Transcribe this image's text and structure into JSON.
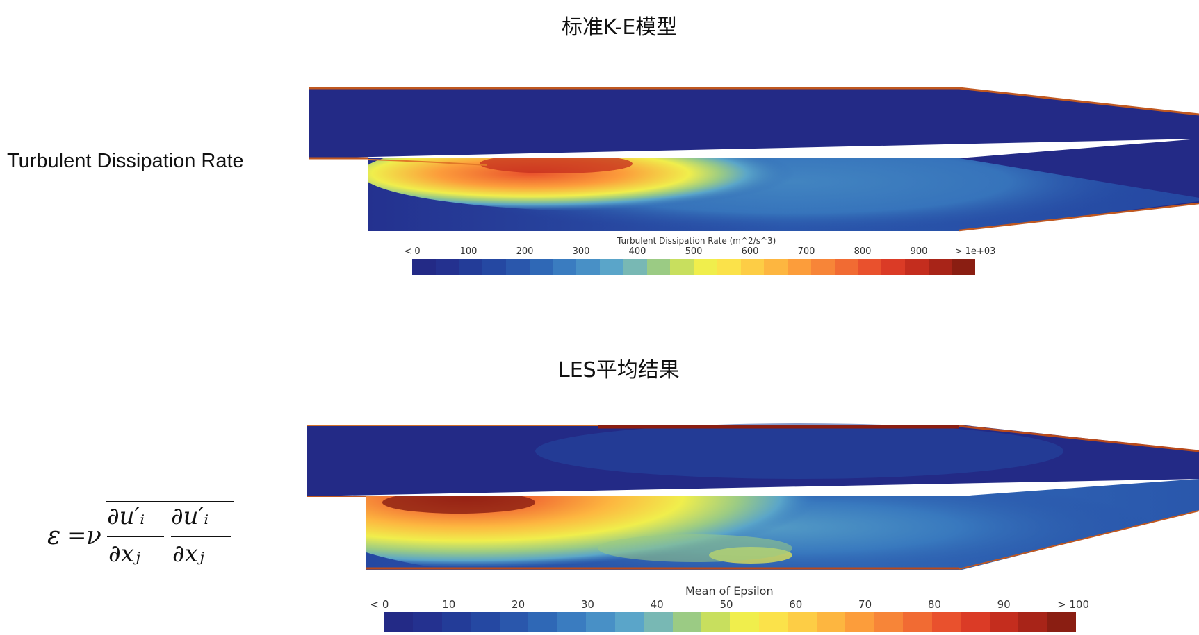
{
  "top": {
    "title": "标准K-E模型",
    "row_label": "Turbulent Dissipation Rate",
    "colorbar": {
      "title": "Turbulent Dissipation Rate (m^2/s^3)",
      "ticks": [
        "< 0",
        "100",
        "200",
        "300",
        "400",
        "500",
        "600",
        "700",
        "800",
        "900",
        "> 1e+03"
      ]
    }
  },
  "bottom": {
    "title": "LES平均结果",
    "formula": {
      "lhs": "ε",
      "eq": "=",
      "nu": "ν",
      "num1": "∂u′ᵢ",
      "den1": "∂xⱼ",
      "num2": "∂u′ᵢ",
      "den2": "∂xⱼ"
    },
    "colorbar": {
      "title": "Mean of Epsilon",
      "ticks": [
        "< 0",
        "10",
        "20",
        "30",
        "40",
        "50",
        "60",
        "70",
        "80",
        "90",
        "> 100"
      ]
    }
  },
  "colormap": [
    "#232a86",
    "#24318f",
    "#233c98",
    "#2548a2",
    "#2a57ac",
    "#2f68b6",
    "#3a7cc0",
    "#4890c6",
    "#5aa5c9",
    "#78b8b4",
    "#9bcb84",
    "#c8df5e",
    "#f0ee4c",
    "#fbe24a",
    "#fdcd45",
    "#fdb640",
    "#fc9d3b",
    "#f78538",
    "#f16b33",
    "#e9512d",
    "#db3b26",
    "#c42d1e",
    "#a82418",
    "#8a1e12"
  ]
}
